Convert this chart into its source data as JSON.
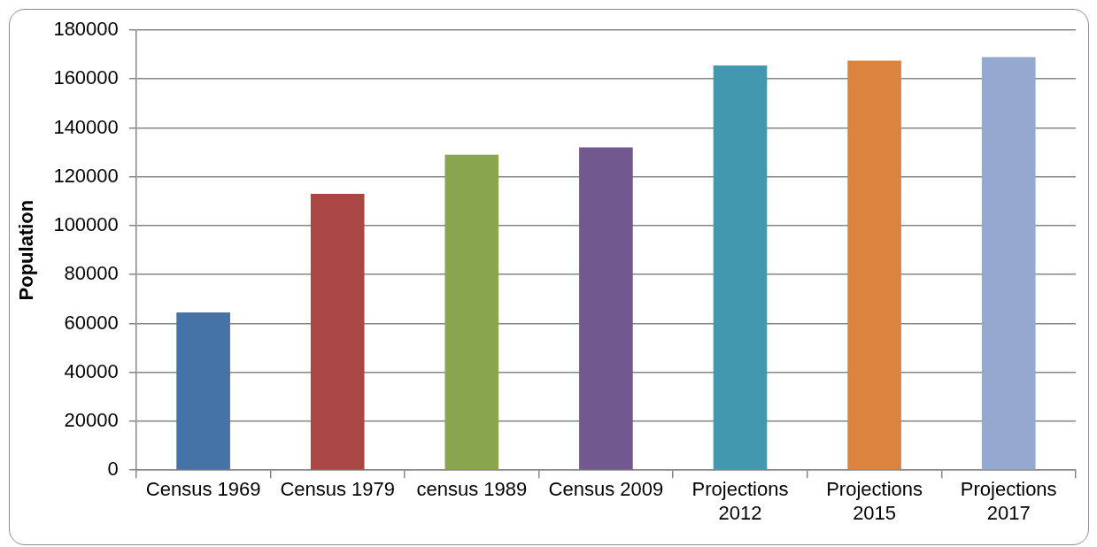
{
  "chart_data": {
    "type": "bar",
    "ylabel": "Population",
    "categories": [
      "Census 1969",
      "Census 1979",
      "census 1989",
      "Census 2009",
      "Projections 2012",
      "Projections 2015",
      "Projections 2017"
    ],
    "values": [
      64500,
      113000,
      129000,
      132000,
      165500,
      167500,
      169000
    ],
    "colors": [
      "#4572a7",
      "#aa4643",
      "#89a54e",
      "#71588f",
      "#4198af",
      "#db843d",
      "#93a9cf"
    ],
    "ylim": [
      0,
      180000
    ],
    "yticks": [
      0,
      20000,
      40000,
      60000,
      80000,
      100000,
      120000,
      140000,
      160000,
      180000
    ],
    "grid": "y"
  }
}
